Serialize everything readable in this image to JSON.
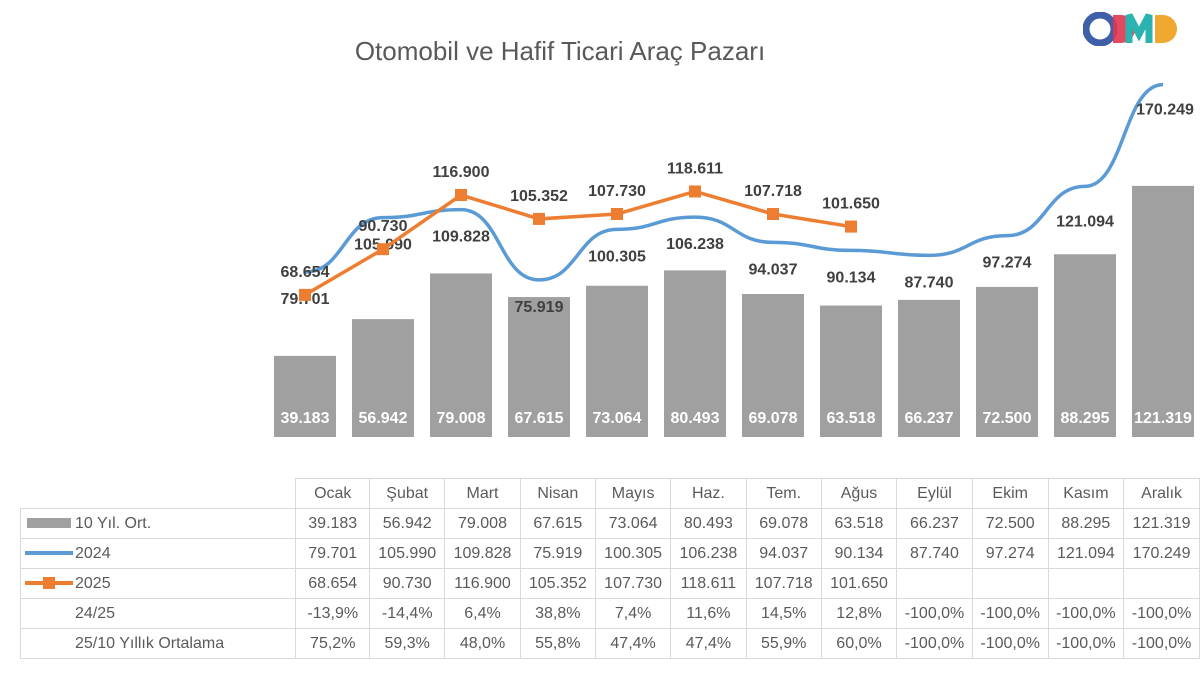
{
  "logo_text": "ODMD",
  "logo_colors": [
    "#3f5fa8",
    "#e0364f",
    "#2bb3b0",
    "#f0a830"
  ],
  "chart_data": {
    "type": "bar+line",
    "title": "Otomobil ve Hafif Ticari Araç Pazarı",
    "categories": [
      "Ocak",
      "Şubat",
      "Mart",
      "Nisan",
      "Mayıs",
      "Haz.",
      "Tem.",
      "Ağus",
      "Eylül",
      "Ekim",
      "Kasım",
      "Aralık"
    ],
    "series": [
      {
        "name": "10 Yıl. Ort.",
        "kind": "bar",
        "color": "#a0a0a0",
        "values": [
          39183,
          56942,
          79008,
          67615,
          73064,
          80493,
          69078,
          63518,
          66237,
          72500,
          88295,
          121319
        ],
        "labels": [
          "39.183",
          "56.942",
          "79.008",
          "67.615",
          "73.064",
          "80.493",
          "69.078",
          "63.518",
          "66.237",
          "72.500",
          "88.295",
          "121.319"
        ]
      },
      {
        "name": "2024",
        "kind": "line",
        "color": "#5b9bd5",
        "values": [
          79701,
          105990,
          109828,
          75919,
          100305,
          106238,
          94037,
          90134,
          87740,
          97274,
          121094,
          170249
        ],
        "labels": [
          "79.701",
          "105.990",
          "109.828",
          "75.919",
          "100.305",
          "106.238",
          "94.037",
          "90.134",
          "87.740",
          "97.274",
          "121.094",
          "170.249"
        ]
      },
      {
        "name": "2025",
        "kind": "line-marker",
        "color": "#ed7d31",
        "values": [
          68654,
          90730,
          116900,
          105352,
          107730,
          118611,
          107718,
          101650,
          null,
          null,
          null,
          null
        ],
        "labels": [
          "68.654",
          "90.730",
          "116.900",
          "105.352",
          "107.730",
          "118.611",
          "107.718",
          "101.650",
          "",
          "",
          "",
          ""
        ]
      }
    ],
    "ylim": [
      0,
      180000
    ],
    "grid": false
  },
  "table": {
    "rows": [
      {
        "label": "10 Yıl. Ort.",
        "swatch": "bar",
        "cells": [
          "39.183",
          "56.942",
          "79.008",
          "67.615",
          "73.064",
          "80.493",
          "69.078",
          "63.518",
          "66.237",
          "72.500",
          "88.295",
          "121.319"
        ]
      },
      {
        "label": "2024",
        "swatch": "line",
        "cells": [
          "79.701",
          "105.990",
          "109.828",
          "75.919",
          "100.305",
          "106.238",
          "94.037",
          "90.134",
          "87.740",
          "97.274",
          "121.094",
          "170.249"
        ]
      },
      {
        "label": "2025",
        "swatch": "marker",
        "cells": [
          "68.654",
          "90.730",
          "116.900",
          "105.352",
          "107.730",
          "118.611",
          "107.718",
          "101.650",
          "",
          "",
          "",
          ""
        ]
      },
      {
        "label": "24/25",
        "swatch": "",
        "cells": [
          "-13,9%",
          "-14,4%",
          "6,4%",
          "38,8%",
          "7,4%",
          "11,6%",
          "14,5%",
          "12,8%",
          "-100,0%",
          "-100,0%",
          "-100,0%",
          "-100,0%"
        ]
      },
      {
        "label": "25/10 Yıllık Ortalama",
        "swatch": "",
        "cells": [
          "75,2%",
          "59,3%",
          "48,0%",
          "55,8%",
          "47,4%",
          "47,4%",
          "55,9%",
          "60,0%",
          "-100,0%",
          "-100,0%",
          "-100,0%",
          "-100,0%"
        ]
      }
    ]
  }
}
